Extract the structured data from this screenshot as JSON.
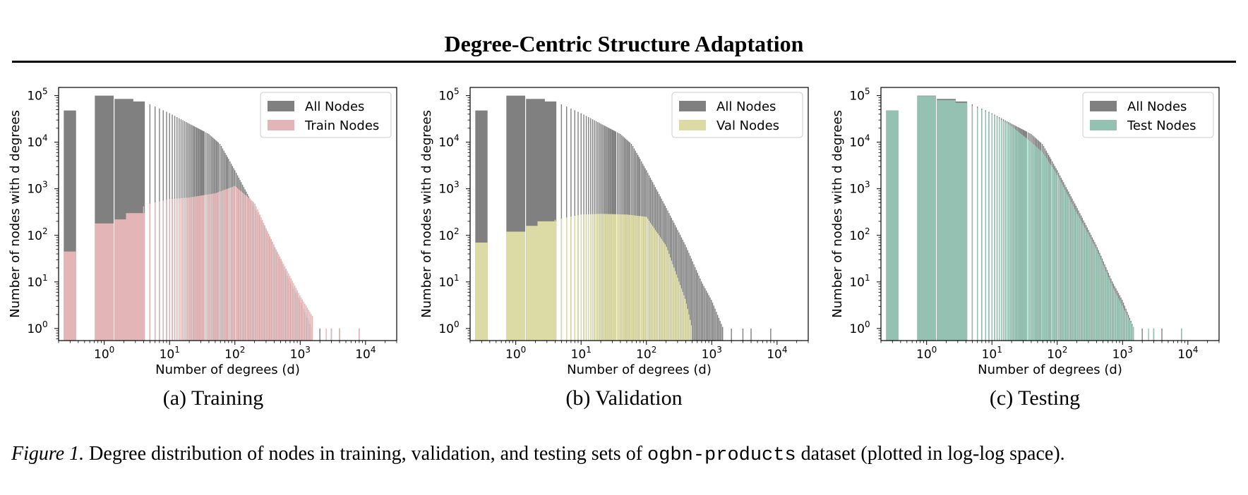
{
  "figure": {
    "title": "Degree-Centric Structure Adaptation",
    "caption_label": "Figure 1.",
    "caption_pre": "Degree distribution of nodes in training, validation, and testing sets of",
    "caption_code": "ogbn-products",
    "caption_post": "dataset (plotted in log-log space)."
  },
  "colors": {
    "all_nodes": "#808080",
    "train": "#e3b5b7",
    "val": "#dcdba5",
    "test": "#94c1b1"
  },
  "chart_data": [
    {
      "type": "bar",
      "subtitle": "(a) Training",
      "xlabel": "Number of degrees (d)",
      "ylabel": "Number of nodes with d degrees",
      "x_scale": "log",
      "y_scale": "log",
      "xlim": [
        0.2,
        30000
      ],
      "ylim": [
        0.55,
        150000
      ],
      "xticks": [
        "10^0",
        "10^1",
        "10^2",
        "10^3",
        "10^4"
      ],
      "yticks": [
        "10^0",
        "10^1",
        "10^2",
        "10^3",
        "10^4",
        "10^5"
      ],
      "grid": false,
      "legend_position": "top-right",
      "series": [
        {
          "name": "All Nodes",
          "color_key": "all_nodes",
          "model": {
            "type": "background_all_nodes"
          }
        },
        {
          "name": "Train Nodes",
          "color_key": "train",
          "points": [
            [
              0,
              45
            ],
            [
              1,
              180
            ],
            [
              2,
              220
            ],
            [
              3,
              300
            ],
            [
              4,
              420
            ],
            [
              5,
              480
            ],
            [
              10,
              600
            ],
            [
              20,
              650
            ],
            [
              50,
              800
            ],
            [
              100,
              1150
            ],
            [
              200,
              500
            ],
            [
              400,
              60
            ],
            [
              1000,
              5
            ],
            [
              2000,
              1
            ]
          ],
          "sparse_x": [
            2500,
            3000,
            4000,
            8000
          ]
        }
      ]
    },
    {
      "type": "bar",
      "subtitle": "(b) Validation",
      "xlabel": "Number of degrees (d)",
      "ylabel": "Number of nodes with d degrees",
      "x_scale": "log",
      "y_scale": "log",
      "xlim": [
        0.2,
        30000
      ],
      "ylim": [
        0.55,
        150000
      ],
      "xticks": [
        "10^0",
        "10^1",
        "10^2",
        "10^3",
        "10^4"
      ],
      "yticks": [
        "10^0",
        "10^1",
        "10^2",
        "10^3",
        "10^4",
        "10^5"
      ],
      "grid": false,
      "legend_position": "top-right",
      "series": [
        {
          "name": "All Nodes",
          "color_key": "all_nodes",
          "model": {
            "type": "background_all_nodes"
          }
        },
        {
          "name": "Val Nodes",
          "color_key": "val",
          "points": [
            [
              0,
              70
            ],
            [
              1,
              120
            ],
            [
              2,
              160
            ],
            [
              3,
              200
            ],
            [
              5,
              230
            ],
            [
              10,
              280
            ],
            [
              20,
              290
            ],
            [
              50,
              280
            ],
            [
              100,
              250
            ],
            [
              200,
              60
            ],
            [
              400,
              4
            ],
            [
              500,
              1
            ]
          ],
          "sparse_x": []
        }
      ]
    },
    {
      "type": "bar",
      "subtitle": "(c) Testing",
      "xlabel": "Number of degrees (d)",
      "ylabel": "Number of nodes with d degrees",
      "x_scale": "log",
      "y_scale": "log",
      "xlim": [
        0.2,
        30000
      ],
      "ylim": [
        0.55,
        150000
      ],
      "xticks": [
        "10^0",
        "10^1",
        "10^2",
        "10^3",
        "10^4"
      ],
      "yticks": [
        "10^0",
        "10^1",
        "10^2",
        "10^3",
        "10^4",
        "10^5"
      ],
      "grid": false,
      "legend_position": "top-right",
      "series": [
        {
          "name": "All Nodes",
          "color_key": "all_nodes",
          "model": {
            "type": "background_all_nodes"
          }
        },
        {
          "name": "Test Nodes",
          "color_key": "test",
          "points": [
            [
              0,
              48000
            ],
            [
              1,
              98000
            ],
            [
              2,
              80000
            ],
            [
              3,
              70000
            ],
            [
              5,
              60000
            ],
            [
              10,
              40000
            ],
            [
              20,
              22000
            ],
            [
              40,
              10000
            ],
            [
              60,
              6000
            ],
            [
              100,
              2000
            ],
            [
              200,
              300
            ],
            [
              400,
              50
            ],
            [
              700,
              8
            ],
            [
              1000,
              3
            ],
            [
              1500,
              1
            ]
          ],
          "sparse_x": [
            2500,
            3000,
            8000
          ]
        }
      ]
    }
  ],
  "all_nodes_points": [
    [
      0,
      48000
    ],
    [
      1,
      100000
    ],
    [
      2,
      85000
    ],
    [
      3,
      75000
    ],
    [
      5,
      65000
    ],
    [
      10,
      42000
    ],
    [
      20,
      25000
    ],
    [
      40,
      15000
    ],
    [
      60,
      9000
    ],
    [
      100,
      2500
    ],
    [
      200,
      400
    ],
    [
      400,
      60
    ],
    [
      700,
      10
    ],
    [
      1000,
      4
    ],
    [
      1500,
      1
    ]
  ],
  "all_nodes_sparse_x": [
    2000,
    3000,
    4000,
    8000
  ]
}
